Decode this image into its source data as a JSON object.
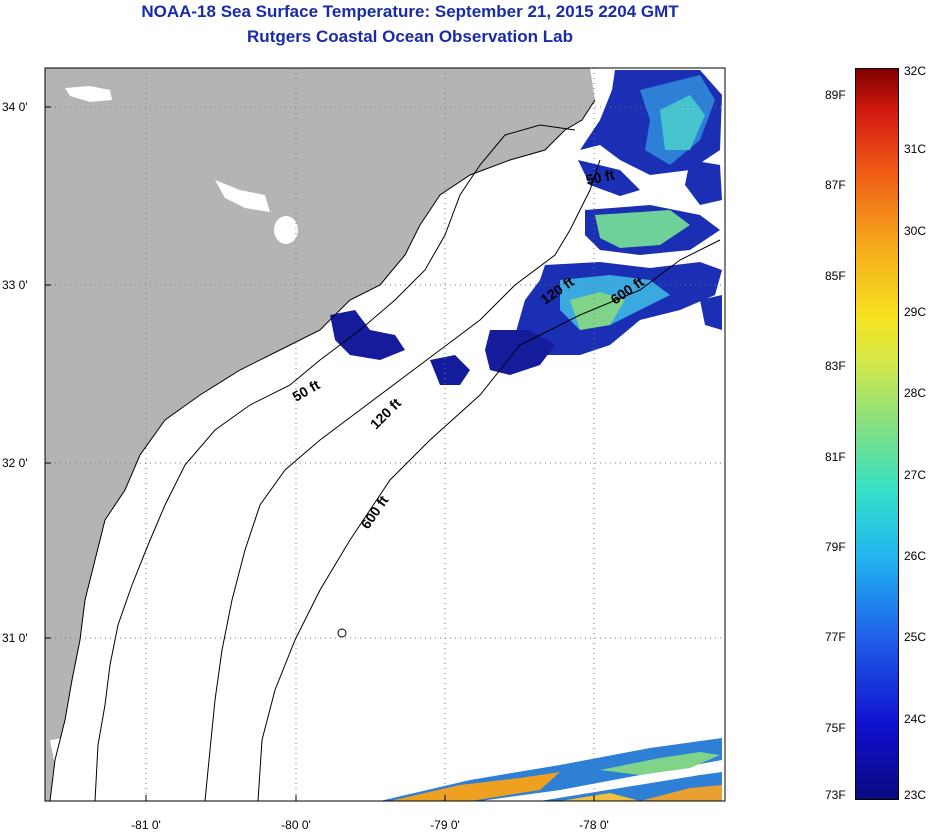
{
  "title": {
    "line1": "NOAA-18 Sea Surface Temperature:  September 21, 2015 2204 GMT",
    "line2": "Rutgers Coastal Ocean Observation Lab"
  },
  "map": {
    "lon_labels": [
      "-81 0'",
      "-80 0'",
      "-79 0'",
      "-78 0'"
    ],
    "lat_labels": [
      "34 0'",
      "33 0'",
      "32 0'",
      "31 0'"
    ],
    "depth_contours": [
      "50 ft",
      "120 ft",
      "600 ft",
      "50 ft",
      "120 ft",
      "600 ft"
    ],
    "land_color": "#b4b4b4",
    "ocean_color": "#ffffff"
  },
  "colorbar": {
    "fahrenheit_labels": [
      "89F",
      "87F",
      "85F",
      "83F",
      "81F",
      "79F",
      "77F",
      "75F",
      "73F"
    ],
    "celsius_labels": [
      "32C",
      "31C",
      "30C",
      "29C",
      "28C",
      "27C",
      "26C",
      "25C",
      "24C",
      "23C"
    ],
    "range_c": [
      23,
      32
    ]
  }
}
